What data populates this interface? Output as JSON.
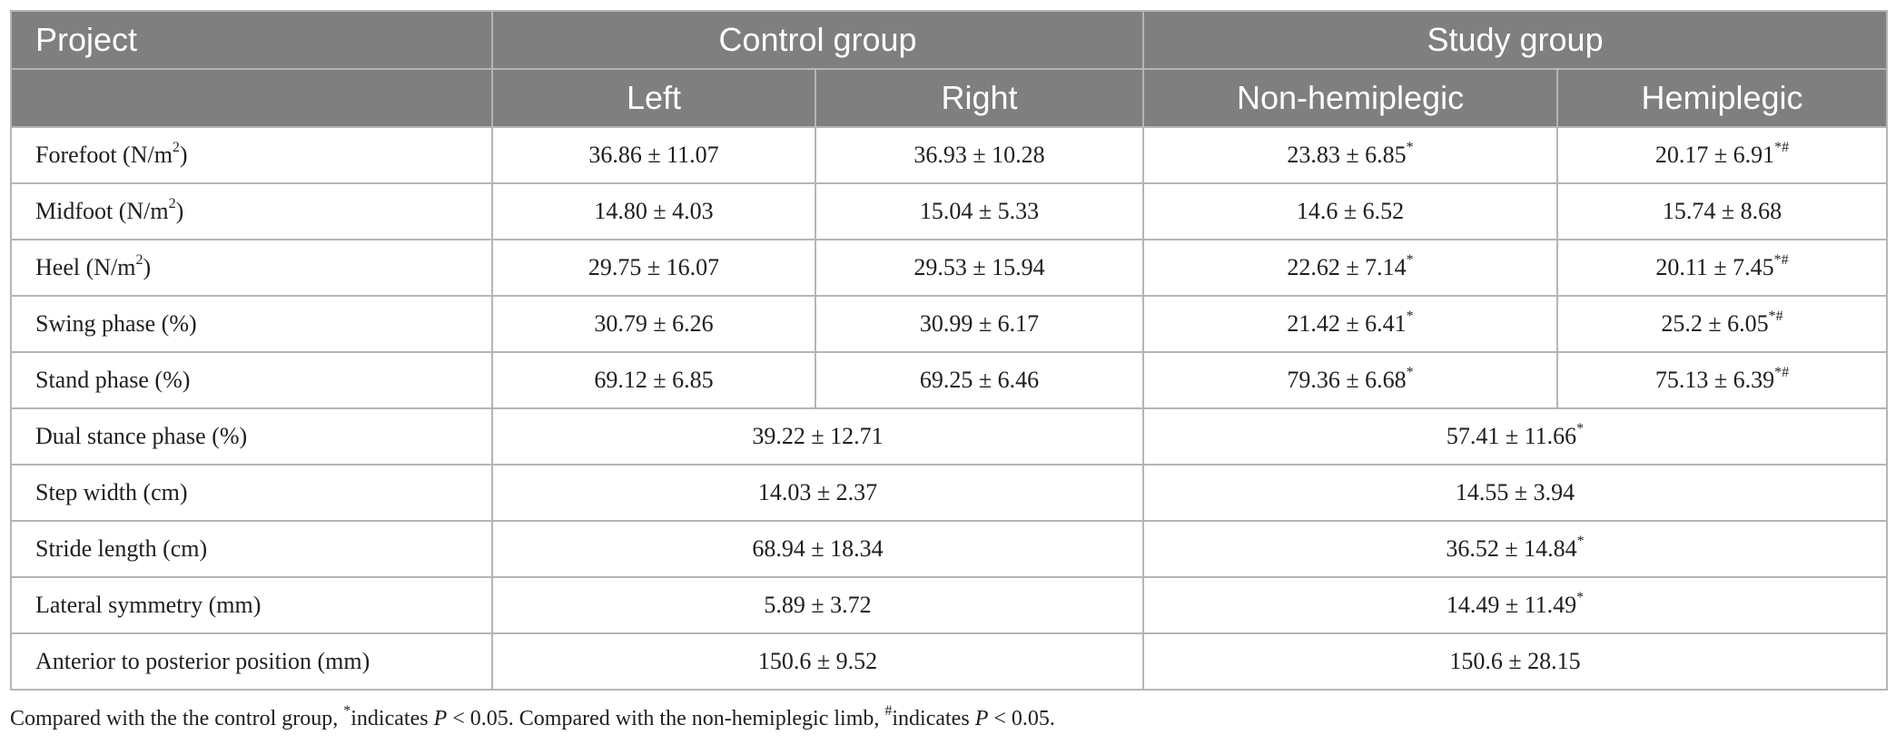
{
  "header": {
    "project": "Project",
    "control_group": "Control group",
    "study_group": "Study group",
    "left": "Left",
    "right": "Right",
    "non_hemiplegic": "Non-hemiplegic",
    "hemiplegic": "Hemiplegic"
  },
  "rows": {
    "forefoot": {
      "label": "Forefoot (N/m",
      "sup_unit": "2",
      "label_end": ")",
      "left": "36.86 ± 11.07",
      "right": "36.93 ± 10.28",
      "non_hemiplegic": "23.83 ± 6.85",
      "non_hemiplegic_mark": "*",
      "hemiplegic": "20.17 ± 6.91",
      "hemiplegic_mark": "*#"
    },
    "midfoot": {
      "label": "Midfoot (N/m",
      "sup_unit": "2",
      "label_end": ")",
      "left": "14.80 ± 4.03",
      "right": "15.04 ± 5.33",
      "non_hemiplegic": "14.6 ± 6.52",
      "hemiplegic": "15.74 ± 8.68"
    },
    "heel": {
      "label": "Heel (N/m",
      "sup_unit": "2",
      "label_end": ")",
      "left": "29.75 ± 16.07",
      "right": "29.53 ± 15.94",
      "non_hemiplegic": "22.62 ± 7.14",
      "non_hemiplegic_mark": "*",
      "hemiplegic": "20.11 ± 7.45",
      "hemiplegic_mark": "*#"
    },
    "swing": {
      "label": "Swing phase (%)",
      "left": "30.79 ± 6.26",
      "right": "30.99 ± 6.17",
      "non_hemiplegic": "21.42 ± 6.41",
      "non_hemiplegic_mark": "*",
      "hemiplegic": "25.2 ± 6.05",
      "hemiplegic_mark": "*#"
    },
    "stand": {
      "label": "Stand phase (%)",
      "left": "69.12 ± 6.85",
      "right": "69.25 ± 6.46",
      "non_hemiplegic": "79.36 ± 6.68",
      "non_hemiplegic_mark": "*",
      "hemiplegic": "75.13 ± 6.39",
      "hemiplegic_mark": "*#"
    },
    "dual": {
      "label": "Dual stance phase (%)",
      "control": "39.22 ± 12.71",
      "study": "57.41 ± 11.66",
      "study_mark": "*"
    },
    "step_width": {
      "label": "Step width (cm)",
      "control": "14.03 ± 2.37",
      "study": "14.55 ± 3.94"
    },
    "stride": {
      "label": "Stride length (cm)",
      "control": "68.94 ± 18.34",
      "study": "36.52 ± 14.84",
      "study_mark": "*"
    },
    "lateral": {
      "label": "Lateral symmetry (mm)",
      "control": "5.89 ± 3.72",
      "study": "14.49 ± 11.49",
      "study_mark": "*"
    },
    "ap": {
      "label": "Anterior to posterior position (mm)",
      "control": "150.6 ± 9.52",
      "study": "150.6 ± 28.15"
    }
  },
  "footnote": {
    "part1": "Compared with the the control group, ",
    "mark1": "*",
    "part2": "indicates ",
    "p1": "P",
    "part3": " < 0.05. Compared with the non-hemiplegic limb, ",
    "mark2": "#",
    "part4": "indicates ",
    "p2": "P",
    "part5": " < 0.05."
  }
}
